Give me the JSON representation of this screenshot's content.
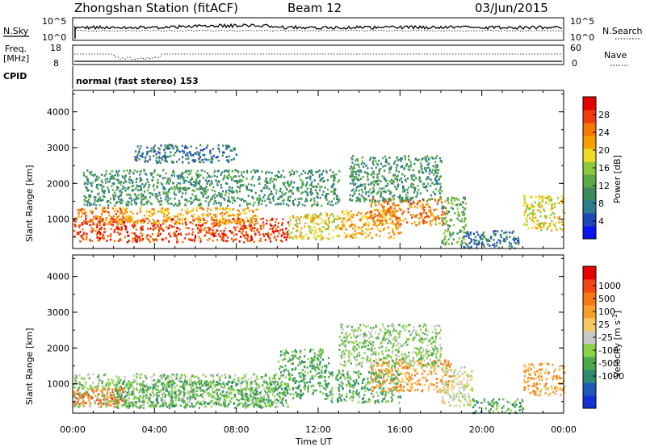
{
  "header": {
    "station": "Zhongshan Station (fitACF)",
    "beam": "Beam 12",
    "date": "03/Jun/2015"
  },
  "noise_panel": {
    "left_label": "N.Sky",
    "left_ticks": [
      "10^5",
      "10^0"
    ],
    "right_label": "N.Search",
    "right_ticks": [
      "10^5",
      "10^0"
    ]
  },
  "freq_panel": {
    "left_label_1": "Freq.",
    "left_label_2": "[MHz]",
    "left_ticks": [
      "18",
      "8"
    ],
    "right_label": "Nave",
    "right_ticks": [
      "60",
      "0"
    ]
  },
  "cpid": {
    "label": "CPID",
    "value": "normal (fast stereo) 153"
  },
  "chart_data": [
    {
      "type": "heatmap",
      "parameter": "Power",
      "ylabel": "Slant Range [km]",
      "xlabel": "Time UT",
      "ylim": [
        180,
        4600
      ],
      "yticks": [
        "1000",
        "2000",
        "3000",
        "4000"
      ],
      "xticks": [
        "00:00",
        "04:00",
        "08:00",
        "12:00",
        "16:00",
        "20:00",
        "00:00"
      ],
      "colorbar": {
        "label": "Power [dB]",
        "range": [
          0,
          32
        ],
        "ticks": [
          "4",
          "8",
          "12",
          "16",
          "20",
          "24",
          "28"
        ],
        "colors": [
          "#0a14f0",
          "#1e46b4",
          "#2e7d8e",
          "#3c8a5a",
          "#5aaa46",
          "#8cc83c",
          "#f0dc28",
          "#f5a000",
          "#f57800",
          "#f03c0a",
          "#e60000"
        ]
      },
      "scatter_regions": [
        {
          "t0": 0.0,
          "t1": 10.5,
          "r0": 380,
          "r1": 1050,
          "v": 28
        },
        {
          "t0": 0.2,
          "t1": 2.6,
          "r0": 850,
          "r1": 1350,
          "v": 24
        },
        {
          "t0": 2.0,
          "t1": 9.0,
          "r0": 900,
          "r1": 1350,
          "v": 22
        },
        {
          "t0": 10.5,
          "t1": 13.0,
          "r0": 450,
          "r1": 1200,
          "v": 18
        },
        {
          "t0": 13.0,
          "t1": 16.0,
          "r0": 500,
          "r1": 1300,
          "v": 22
        },
        {
          "t0": 14.5,
          "t1": 18.2,
          "r0": 850,
          "r1": 1600,
          "v": 26
        },
        {
          "t0": 13.5,
          "t1": 18.0,
          "r0": 1500,
          "r1": 2800,
          "v": 10
        },
        {
          "t0": 18.0,
          "t1": 19.2,
          "r0": 300,
          "r1": 1650,
          "v": 14
        },
        {
          "t0": 19.0,
          "t1": 21.8,
          "r0": 200,
          "r1": 700,
          "v": 8
        },
        {
          "t0": 22.0,
          "t1": 24.0,
          "r0": 700,
          "r1": 1700,
          "v": 20
        },
        {
          "t0": 0.5,
          "t1": 13.0,
          "r0": 1400,
          "r1": 2400,
          "v": 10
        },
        {
          "t0": 3.0,
          "t1": 8.0,
          "r0": 2600,
          "r1": 3100,
          "v": 8
        }
      ]
    },
    {
      "type": "heatmap",
      "parameter": "Velocity",
      "ylabel": "Slant Range [km]",
      "xlabel": "Time UT",
      "ylim": [
        180,
        4600
      ],
      "yticks": [
        "1000",
        "2000",
        "3000",
        "4000"
      ],
      "xticks": [
        "00:00",
        "04:00",
        "08:00",
        "12:00",
        "16:00",
        "20:00",
        "00:00"
      ],
      "colorbar": {
        "label": "Velocity [m s^-1]",
        "ticks": [
          "1000",
          "500",
          "100",
          "25",
          "-25",
          "-100",
          "-500",
          "-1000"
        ],
        "colors": [
          "#1432d2",
          "#1e5ab4",
          "#2e8a6e",
          "#4ea84e",
          "#8cd24a",
          "#c8c8c8",
          "#f5c864",
          "#f5a028",
          "#f57814",
          "#f04614",
          "#e60000"
        ]
      },
      "scatter_regions": [
        {
          "t0": 0.0,
          "t1": 10.0,
          "r0": 380,
          "r1": 1300,
          "v": -100
        },
        {
          "t0": 2.0,
          "t1": 10.5,
          "r0": 350,
          "r1": 1100,
          "v": -500
        },
        {
          "t0": 10.0,
          "t1": 12.5,
          "r0": 600,
          "r1": 2000,
          "v": -500
        },
        {
          "t0": 12.5,
          "t1": 16.0,
          "r0": 500,
          "r1": 1400,
          "v": -500
        },
        {
          "t0": 14.5,
          "t1": 18.5,
          "r0": 800,
          "r1": 1700,
          "v": 100
        },
        {
          "t0": 13.0,
          "t1": 18.0,
          "r0": 1500,
          "r1": 2700,
          "v": -100
        },
        {
          "t0": 18.0,
          "t1": 19.5,
          "r0": 400,
          "r1": 1500,
          "v": -25
        },
        {
          "t0": 19.5,
          "t1": 22.0,
          "r0": 200,
          "r1": 600,
          "v": -500
        },
        {
          "t0": 22.0,
          "t1": 24.0,
          "r0": 700,
          "r1": 1600,
          "v": 100
        },
        {
          "t0": 0.0,
          "t1": 2.5,
          "r0": 380,
          "r1": 900,
          "v": 500
        }
      ]
    }
  ]
}
